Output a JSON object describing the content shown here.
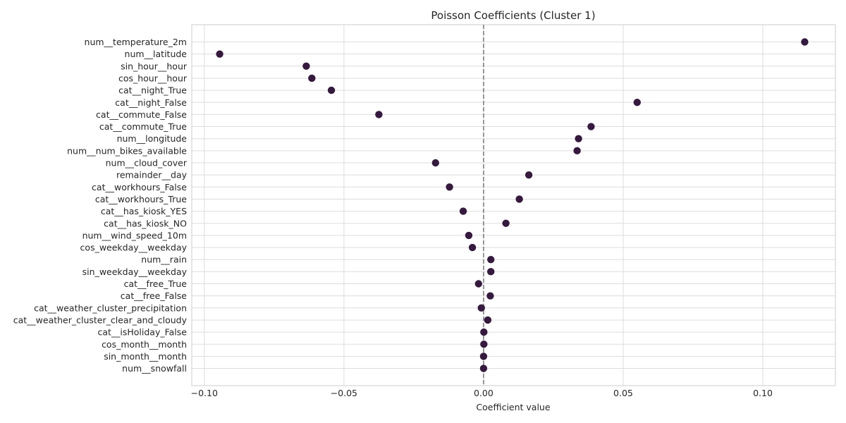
{
  "chart_data": {
    "type": "scatter",
    "title": "Poisson Coefficients (Cluster 1)",
    "xlabel": "Coefficient value",
    "ylabel": "",
    "xlim": [
      -0.1045,
      0.126
    ],
    "xticks": [
      -0.1,
      -0.05,
      0.0,
      0.05,
      0.1
    ],
    "xtick_labels": [
      "−0.10",
      "−0.05",
      "0.00",
      "0.05",
      "0.10"
    ],
    "reference_line": {
      "x": 0,
      "style": "dashed"
    },
    "grid": true,
    "marker_color": "#35193e",
    "points": [
      {
        "feature": "num__temperature_2m",
        "value": 0.115
      },
      {
        "feature": "num__latitude",
        "value": -0.0945
      },
      {
        "feature": "sin_hour__hour",
        "value": -0.0635
      },
      {
        "feature": "cos_hour__hour",
        "value": -0.0615
      },
      {
        "feature": "cat__night_True",
        "value": -0.0545
      },
      {
        "feature": "cat__night_False",
        "value": 0.055
      },
      {
        "feature": "cat__commute_False",
        "value": -0.0375
      },
      {
        "feature": "cat__commute_True",
        "value": 0.0385
      },
      {
        "feature": "num__longitude",
        "value": 0.034
      },
      {
        "feature": "num__num_bikes_available",
        "value": 0.0335
      },
      {
        "feature": "num__cloud_cover",
        "value": -0.0172
      },
      {
        "feature": "remainder__day",
        "value": 0.0162
      },
      {
        "feature": "cat__workhours_False",
        "value": -0.0122
      },
      {
        "feature": "cat__workhours_True",
        "value": 0.0128
      },
      {
        "feature": "cat__has_kiosk_YES",
        "value": -0.0073
      },
      {
        "feature": "cat__has_kiosk_NO",
        "value": 0.008
      },
      {
        "feature": "num__wind_speed_10m",
        "value": -0.0053
      },
      {
        "feature": "cos_weekday__weekday",
        "value": -0.004
      },
      {
        "feature": "num__rain",
        "value": 0.0026
      },
      {
        "feature": "sin_weekday__weekday",
        "value": 0.0026
      },
      {
        "feature": "cat__free_True",
        "value": -0.0018
      },
      {
        "feature": "cat__free_False",
        "value": 0.0024
      },
      {
        "feature": "cat__weather_cluster_precipitation",
        "value": -0.0008
      },
      {
        "feature": "cat__weather_cluster_clear_and_cloudy",
        "value": 0.0015
      },
      {
        "feature": "cat__isHoliday_False",
        "value": 0.0001
      },
      {
        "feature": "cos_month__month",
        "value": 0.0001
      },
      {
        "feature": "sin_month__month",
        "value": 0.0
      },
      {
        "feature": "num__snowfall",
        "value": 0.0
      }
    ]
  }
}
